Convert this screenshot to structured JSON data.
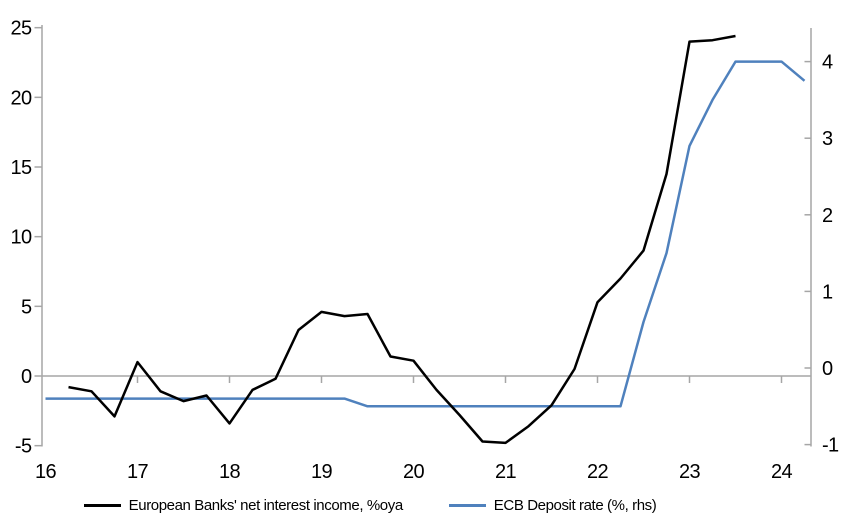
{
  "chart_data": {
    "type": "line",
    "title": "",
    "x_axis": {
      "min": 16,
      "max": 24.35,
      "tick_values": [
        16,
        17,
        18,
        19,
        20,
        21,
        22,
        23,
        24
      ],
      "tick_labels": [
        "16",
        "17",
        "18",
        "19",
        "20",
        "21",
        "22",
        "23",
        "24"
      ]
    },
    "left_axis": {
      "min": -5,
      "max": 25,
      "ticks": [
        -5,
        0,
        5,
        10,
        15,
        20,
        25
      ]
    },
    "right_axis": {
      "min": -1,
      "max": 4.45,
      "ticks": [
        -1,
        0,
        1,
        2,
        3,
        4
      ]
    },
    "zero_line_value": 0,
    "grid": "zero-line-only",
    "legend_position": "bottom",
    "series": [
      {
        "name": "European Banks' net interest income, %oya",
        "color": "#000000",
        "axis": "left",
        "x": [
          16.25,
          16.5,
          16.75,
          17.0,
          17.25,
          17.5,
          17.75,
          18.0,
          18.25,
          18.5,
          18.75,
          19.0,
          19.25,
          19.5,
          19.75,
          20.0,
          20.25,
          20.5,
          20.75,
          21.0,
          21.25,
          21.5,
          21.75,
          22.0,
          22.25,
          22.5,
          22.75,
          23.0,
          23.25,
          23.5
        ],
        "y": [
          -0.8,
          -1.1,
          -2.9,
          1.0,
          -1.1,
          -1.8,
          -1.4,
          -3.4,
          -1.0,
          -0.2,
          3.3,
          4.6,
          4.3,
          4.45,
          1.4,
          1.1,
          -1.0,
          -2.8,
          -4.7,
          -4.8,
          -3.6,
          -2.1,
          0.5,
          5.3,
          7.0,
          9.0,
          14.5,
          24.0,
          24.1,
          24.4
        ]
      },
      {
        "name": "ECB Deposit rate (%, rhs)",
        "color": "#4f81bd",
        "axis": "right",
        "x": [
          16.0,
          16.25,
          16.5,
          16.75,
          17.0,
          17.25,
          17.5,
          17.75,
          18.0,
          18.25,
          18.5,
          18.75,
          19.0,
          19.25,
          19.5,
          19.75,
          20.0,
          20.25,
          20.5,
          20.75,
          21.0,
          21.25,
          21.5,
          21.75,
          22.0,
          22.25,
          22.5,
          22.75,
          23.0,
          23.25,
          23.5,
          23.75,
          24.0,
          24.25
        ],
        "y": [
          -0.4,
          -0.4,
          -0.4,
          -0.4,
          -0.4,
          -0.4,
          -0.4,
          -0.4,
          -0.4,
          -0.4,
          -0.4,
          -0.4,
          -0.4,
          -0.4,
          -0.5,
          -0.5,
          -0.5,
          -0.5,
          -0.5,
          -0.5,
          -0.5,
          -0.5,
          -0.5,
          -0.5,
          -0.5,
          -0.5,
          0.6,
          1.5,
          2.9,
          3.5,
          4.0,
          4.0,
          4.0,
          3.75
        ]
      }
    ],
    "legend": {
      "entries": [
        {
          "label": "European Banks' net interest income, %oya",
          "color": "#000000"
        },
        {
          "label": "ECB Deposit rate (%, rhs)",
          "color": "#4f81bd"
        }
      ]
    }
  },
  "colors": {
    "axis_gray": "#a6a6a6",
    "text": "#000000",
    "background": "#ffffff",
    "series_black": "#000000",
    "series_blue": "#4f81bd"
  }
}
